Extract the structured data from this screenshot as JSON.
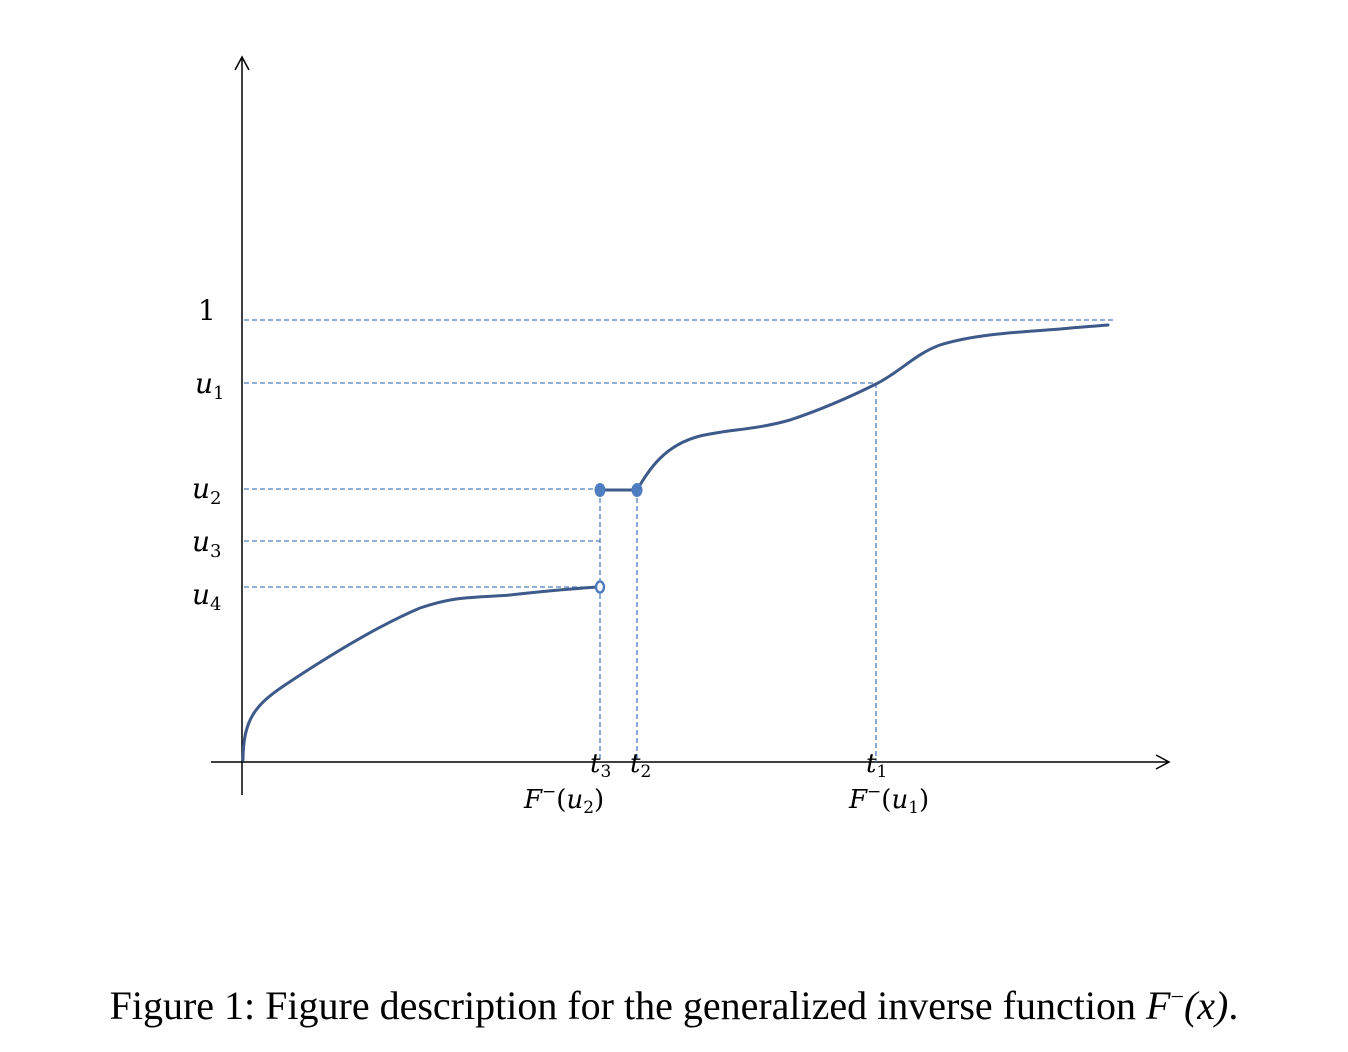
{
  "figure": {
    "y_ticks": {
      "one": "1",
      "u1": {
        "base": "u",
        "sub": "1"
      },
      "u2": {
        "base": "u",
        "sub": "2"
      },
      "u3": {
        "base": "u",
        "sub": "3"
      },
      "u4": {
        "base": "u",
        "sub": "4"
      }
    },
    "x_ticks": {
      "t1": {
        "base": "t",
        "sub": "1"
      },
      "t2": {
        "base": "t",
        "sub": "2"
      },
      "t3": {
        "base": "t",
        "sub": "3"
      }
    },
    "x_annotations": {
      "finv_u2": {
        "prefix": "F",
        "sup": "−",
        "open": "(",
        "base": "u",
        "sub": "2",
        "close": ")"
      },
      "finv_u1": {
        "prefix": "F",
        "sup": "−",
        "open": "(",
        "base": "u",
        "sub": "1",
        "close": ")"
      }
    },
    "colors": {
      "curve": "#3d5a8a",
      "dashed": "#4f7ec0",
      "axis": "#000000"
    }
  },
  "caption": {
    "prefix": "Figure 1: Figure description for the generalized inverse function ",
    "math_F": "F",
    "math_sup": "−",
    "math_arg": "(x)",
    "suffix": "."
  }
}
